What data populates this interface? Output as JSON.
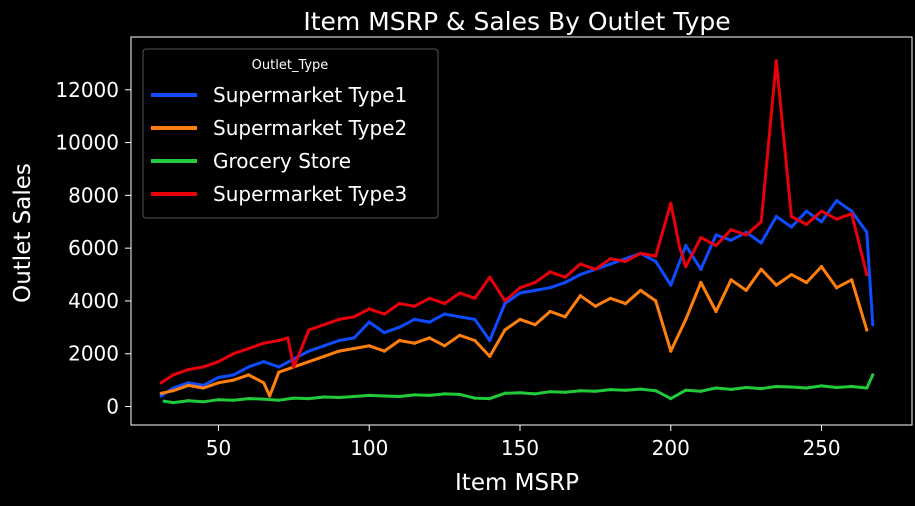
{
  "chart_data": {
    "type": "line",
    "title": "Item MSRP & Sales By Outlet Type",
    "xlabel": "Item MSRP",
    "ylabel": "Outlet Sales",
    "xlim": [
      21,
      280
    ],
    "ylim": [
      -700,
      14000
    ],
    "xticks": [
      50,
      100,
      150,
      200,
      250
    ],
    "yticks": [
      0,
      2000,
      4000,
      6000,
      8000,
      10000,
      12000
    ],
    "grid": false,
    "legend": {
      "title": "Outlet_Type",
      "position": "top-left"
    },
    "series": [
      {
        "name": "Supermarket Type1",
        "color": "#0f4bff",
        "x": [
          31,
          35,
          40,
          45,
          50,
          55,
          60,
          65,
          70,
          75,
          80,
          85,
          90,
          95,
          100,
          105,
          110,
          115,
          120,
          125,
          130,
          135,
          140,
          145,
          150,
          155,
          160,
          165,
          170,
          175,
          180,
          185,
          190,
          195,
          200,
          205,
          210,
          215,
          220,
          225,
          230,
          235,
          240,
          245,
          250,
          255,
          260,
          265,
          267
        ],
        "y": [
          400,
          700,
          900,
          800,
          1100,
          1200,
          1500,
          1700,
          1500,
          1800,
          2100,
          2300,
          2500,
          2600,
          3200,
          2800,
          3000,
          3300,
          3200,
          3500,
          3400,
          3300,
          2500,
          3900,
          4300,
          4400,
          4500,
          4700,
          5000,
          5200,
          5400,
          5600,
          5800,
          5500,
          4600,
          6100,
          5200,
          6500,
          6300,
          6600,
          6200,
          7200,
          6800,
          7400,
          7000,
          7800,
          7400,
          6600,
          3100
        ]
      },
      {
        "name": "Supermarket Type2",
        "color": "#ff7f0e",
        "x": [
          31,
          35,
          40,
          45,
          50,
          55,
          60,
          65,
          67,
          70,
          75,
          80,
          85,
          90,
          95,
          100,
          105,
          110,
          115,
          120,
          125,
          130,
          135,
          140,
          145,
          150,
          155,
          160,
          165,
          170,
          175,
          180,
          185,
          190,
          195,
          200,
          205,
          210,
          215,
          220,
          225,
          230,
          235,
          240,
          245,
          250,
          255,
          260,
          265
        ],
        "y": [
          500,
          600,
          800,
          700,
          900,
          1000,
          1200,
          900,
          400,
          1300,
          1500,
          1700,
          1900,
          2100,
          2200,
          2300,
          2100,
          2500,
          2400,
          2600,
          2300,
          2700,
          2500,
          1900,
          2900,
          3300,
          3100,
          3600,
          3400,
          4200,
          3800,
          4100,
          3900,
          4400,
          4000,
          2100,
          3300,
          4700,
          3600,
          4800,
          4400,
          5200,
          4600,
          5000,
          4700,
          5300,
          4500,
          4800,
          2900
        ]
      },
      {
        "name": "Grocery Store",
        "color": "#22c93b",
        "x": [
          32,
          35,
          40,
          45,
          50,
          55,
          60,
          65,
          70,
          75,
          80,
          85,
          90,
          95,
          100,
          105,
          110,
          115,
          120,
          125,
          130,
          135,
          140,
          145,
          150,
          155,
          160,
          165,
          170,
          175,
          180,
          185,
          190,
          195,
          200,
          205,
          210,
          215,
          220,
          225,
          230,
          235,
          240,
          245,
          250,
          255,
          260,
          265,
          267
        ],
        "y": [
          200,
          150,
          220,
          180,
          260,
          240,
          300,
          280,
          240,
          320,
          300,
          360,
          340,
          380,
          420,
          400,
          380,
          440,
          420,
          480,
          460,
          320,
          300,
          500,
          520,
          480,
          560,
          540,
          600,
          580,
          640,
          620,
          660,
          600,
          300,
          620,
          580,
          700,
          650,
          720,
          680,
          760,
          740,
          700,
          780,
          720,
          760,
          700,
          1200
        ]
      },
      {
        "name": "Supermarket Type3",
        "color": "#e8000b",
        "x": [
          31,
          35,
          40,
          45,
          50,
          55,
          60,
          65,
          70,
          73,
          75,
          80,
          85,
          90,
          95,
          100,
          105,
          110,
          115,
          120,
          125,
          130,
          135,
          140,
          145,
          150,
          155,
          160,
          165,
          170,
          175,
          180,
          185,
          190,
          195,
          200,
          203,
          205,
          210,
          215,
          220,
          225,
          230,
          235,
          240,
          245,
          250,
          255,
          260,
          265
        ],
        "y": [
          900,
          1200,
          1400,
          1500,
          1700,
          2000,
          2200,
          2400,
          2500,
          2600,
          1500,
          2900,
          3100,
          3300,
          3400,
          3700,
          3500,
          3900,
          3800,
          4100,
          3900,
          4300,
          4100,
          4900,
          4000,
          4500,
          4700,
          5100,
          4900,
          5400,
          5200,
          5600,
          5500,
          5800,
          5700,
          7700,
          6000,
          5300,
          6400,
          6100,
          6700,
          6500,
          7000,
          13100,
          7200,
          6900,
          7400,
          7100,
          7300,
          5000
        ]
      }
    ]
  }
}
